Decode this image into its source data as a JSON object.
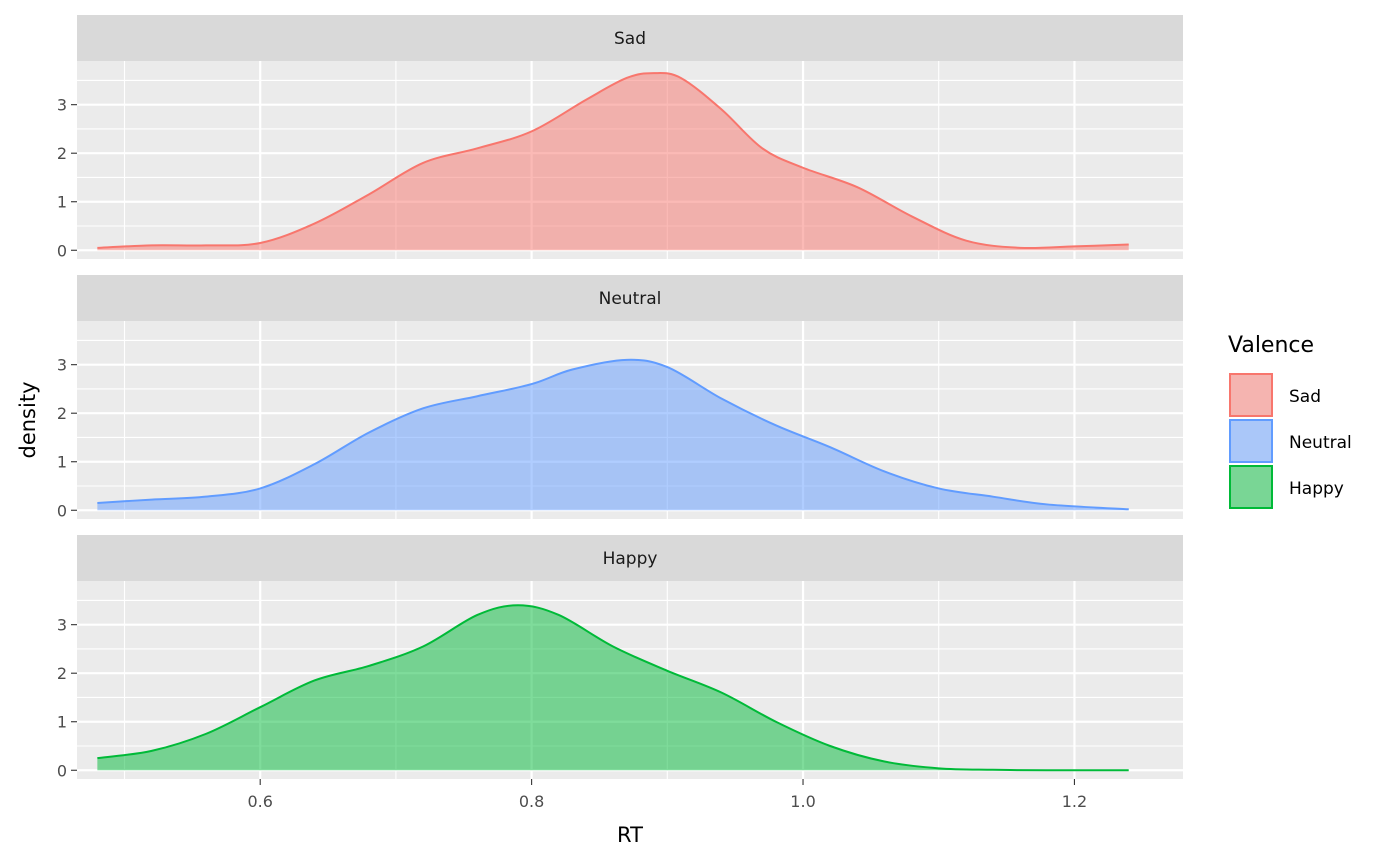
{
  "chart_data": {
    "type": "area",
    "xlabel": "RT",
    "ylabel": "density",
    "xlim": [
      0.465,
      1.28
    ],
    "ylim": [
      -0.18,
      3.9
    ],
    "x_ticks": [
      0.6,
      0.8,
      1.0,
      1.2
    ],
    "x_tick_labels": [
      "0.6",
      "0.8",
      "1.0",
      "1.2"
    ],
    "y_ticks": [
      0,
      1,
      2,
      3
    ],
    "y_tick_labels": [
      "0",
      "1",
      "2",
      "3"
    ],
    "grid": true,
    "legend": {
      "title": "Valence",
      "position": "right",
      "entries": [
        "Sad",
        "Neutral",
        "Happy"
      ]
    },
    "facets": [
      "Sad",
      "Neutral",
      "Happy"
    ],
    "colors": {
      "Sad": "#F8766D",
      "Neutral": "#619CFF",
      "Happy": "#00BA38"
    },
    "series": [
      {
        "name": "Sad",
        "x": [
          0.48,
          0.52,
          0.56,
          0.6,
          0.64,
          0.68,
          0.72,
          0.76,
          0.8,
          0.84,
          0.87,
          0.89,
          0.91,
          0.94,
          0.97,
          1.0,
          1.04,
          1.08,
          1.12,
          1.16,
          1.2,
          1.24
        ],
        "y": [
          0.05,
          0.1,
          0.1,
          0.15,
          0.55,
          1.15,
          1.8,
          2.1,
          2.45,
          3.1,
          3.55,
          3.65,
          3.55,
          2.9,
          2.1,
          1.7,
          1.3,
          0.7,
          0.2,
          0.05,
          0.08,
          0.12
        ]
      },
      {
        "name": "Neutral",
        "x": [
          0.48,
          0.52,
          0.56,
          0.6,
          0.64,
          0.68,
          0.72,
          0.76,
          0.8,
          0.83,
          0.87,
          0.9,
          0.94,
          0.98,
          1.02,
          1.06,
          1.1,
          1.14,
          1.18,
          1.24
        ],
        "y": [
          0.15,
          0.22,
          0.28,
          0.45,
          0.95,
          1.6,
          2.1,
          2.35,
          2.6,
          2.9,
          3.1,
          2.95,
          2.3,
          1.75,
          1.3,
          0.8,
          0.45,
          0.28,
          0.12,
          0.02
        ]
      },
      {
        "name": "Happy",
        "x": [
          0.48,
          0.52,
          0.56,
          0.6,
          0.64,
          0.68,
          0.72,
          0.76,
          0.79,
          0.82,
          0.86,
          0.9,
          0.94,
          0.98,
          1.02,
          1.06,
          1.1,
          1.14,
          1.18,
          1.24
        ],
        "y": [
          0.25,
          0.4,
          0.75,
          1.3,
          1.85,
          2.15,
          2.55,
          3.2,
          3.4,
          3.2,
          2.55,
          2.05,
          1.6,
          1.0,
          0.5,
          0.18,
          0.04,
          0.01,
          0.0,
          0.0
        ]
      }
    ]
  }
}
